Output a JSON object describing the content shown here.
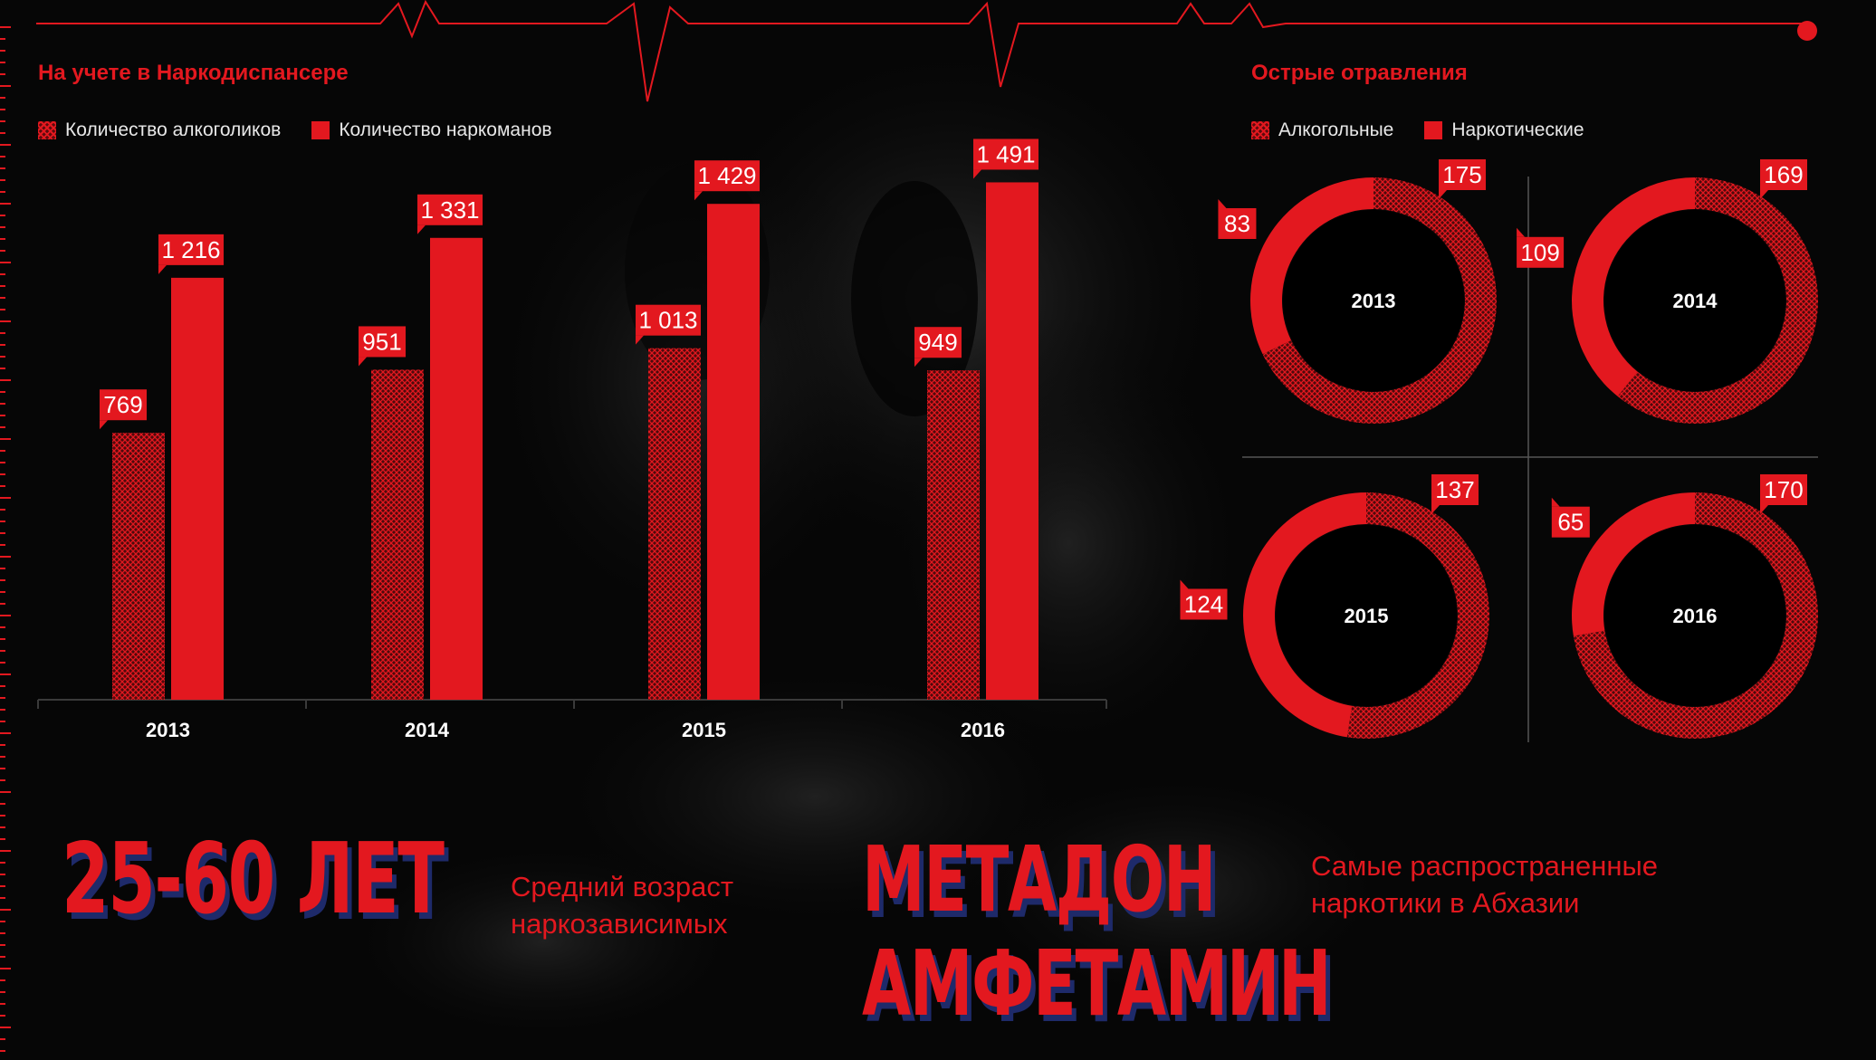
{
  "left_chart": {
    "title": "На учете в Наркодиспансере",
    "legend": [
      {
        "label": "Количество алкоголиков",
        "style": "hatched"
      },
      {
        "label": "Количество наркоманов",
        "style": "solid"
      }
    ]
  },
  "right_chart": {
    "title": "Острые отравления",
    "legend": [
      {
        "label": "Алкогольные",
        "style": "hatched"
      },
      {
        "label": "Наркотические",
        "style": "solid"
      }
    ]
  },
  "stats": {
    "age_value": "25-60 ЛЕТ",
    "age_caption_line1": "Средний возраст",
    "age_caption_line2": "наркозависимых",
    "drug1": "МЕТАДОН",
    "drug2": "АМФЕТАМИН",
    "drugs_caption_line1": "Самые распространенные",
    "drugs_caption_line2": "наркотики в Абхазии"
  },
  "chart_data": [
    {
      "type": "bar",
      "title": "На учете в Наркодиспансере",
      "categories": [
        "2013",
        "2014",
        "2015",
        "2016"
      ],
      "series": [
        {
          "name": "Количество алкоголиков",
          "values": [
            769,
            951,
            1013,
            949
          ],
          "labels": [
            "769",
            "951",
            "1 013",
            "949"
          ]
        },
        {
          "name": "Количество наркоманов",
          "values": [
            1216,
            1331,
            1429,
            1491
          ],
          "labels": [
            "1 216",
            "1 331",
            "1 429",
            "1 491"
          ]
        }
      ],
      "ylim": [
        0,
        1500
      ]
    },
    {
      "type": "pie",
      "title": "Острые отравления",
      "series_names": [
        "Алкогольные",
        "Наркотические"
      ],
      "donuts": [
        {
          "year": "2013",
          "alcohol": 175,
          "narcotic": 83
        },
        {
          "year": "2014",
          "alcohol": 169,
          "narcotic": 109
        },
        {
          "year": "2015",
          "alcohol": 137,
          "narcotic": 124
        },
        {
          "year": "2016",
          "alcohol": 170,
          "narcotic": 65
        }
      ]
    }
  ],
  "colors": {
    "accent": "#e3181f",
    "hatch_dark": "#5a0b0d",
    "shadow": "#1e2a6a",
    "background": "#070707"
  }
}
